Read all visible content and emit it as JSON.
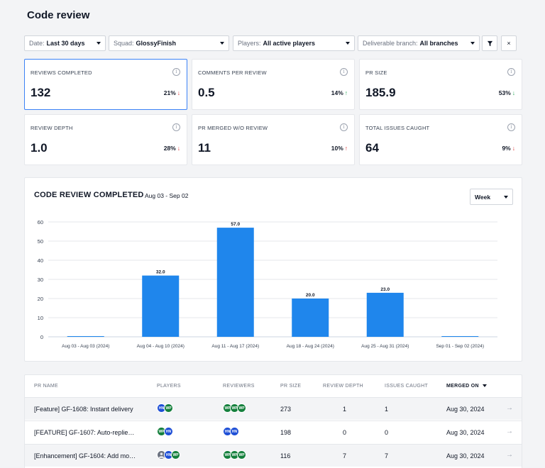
{
  "page": {
    "title": "Code review"
  },
  "filters": [
    {
      "label": "Date:",
      "value": "Last 30 days"
    },
    {
      "label": "Squad:",
      "value": "GlossyFinish"
    },
    {
      "label": "Players:",
      "value": "All active players"
    },
    {
      "label": "Deliverable branch:",
      "value": "All branches"
    }
  ],
  "toolbar": {
    "filter_icon": "funnel-icon",
    "clear_icon": "close-icon",
    "clear_glyph": "×"
  },
  "metrics": [
    {
      "label": "REVIEWS COMPLETED",
      "value": "132",
      "delta": "21%",
      "trend": "down",
      "good": false
    },
    {
      "label": "COMMENTS PER REVIEW",
      "value": "0.5",
      "delta": "14%",
      "trend": "up",
      "good": true
    },
    {
      "label": "PR SIZE",
      "value": "185.9",
      "delta": "53%",
      "trend": "down",
      "good": true
    },
    {
      "label": "REVIEW DEPTH",
      "value": "1.0",
      "delta": "28%",
      "trend": "down",
      "good": false
    },
    {
      "label": "PR MERGED W/O REVIEW",
      "value": "11",
      "delta": "10%",
      "trend": "up",
      "good": false
    },
    {
      "label": "TOTAL ISSUES CAUGHT",
      "value": "64",
      "delta": "9%",
      "trend": "down",
      "good": false
    }
  ],
  "chart": {
    "title": "CODE REVIEW COMPLETED",
    "range": "Aug 03 - Sep 02",
    "granularity": "Week"
  },
  "chart_data": {
    "type": "bar",
    "categories": [
      "Aug 03 - Aug 03 (2024)",
      "Aug 04 - Aug 10 (2024)",
      "Aug 11 - Aug 17 (2024)",
      "Aug 18 - Aug 24 (2024)",
      "Aug 25 - Aug 31 (2024)",
      "Sep 01 - Sep 02 (2024)"
    ],
    "values": [
      0,
      32,
      57,
      20,
      23,
      0
    ],
    "labels": [
      "",
      "32.0",
      "57.0",
      "20.0",
      "23.0",
      ""
    ],
    "yticks": [
      0,
      10,
      20,
      30,
      40,
      50,
      60
    ],
    "ylim": [
      0,
      60
    ],
    "grid": true,
    "color": "#1f86ec"
  },
  "table": {
    "headers": [
      "PR NAME",
      "PLAYERS",
      "REVIEWERS",
      "PR SIZE",
      "REVIEW DEPTH",
      "ISSUES CAUGHT",
      "MERGED ON"
    ],
    "rows": [
      {
        "name": "[Feature] GF-1608: Instant delivery",
        "players": [
          "HN",
          "WP"
        ],
        "reviewers": [
          "WP",
          "WP",
          "WP"
        ],
        "size": "273",
        "depth": "1",
        "issues": "1",
        "merged": "Aug 30, 2024"
      },
      {
        "name": "[FEATURE] GF-1607: Auto-replie…",
        "players": [
          "WP",
          "HN"
        ],
        "reviewers": [
          "HN",
          "HN"
        ],
        "size": "198",
        "depth": "0",
        "issues": "0",
        "merged": "Aug 30, 2024"
      },
      {
        "name": "[Enhancement] GF-1604: Add mo…",
        "players": [
          "",
          "HN",
          "WP"
        ],
        "reviewers": [
          "WP",
          "WP",
          "WP"
        ],
        "size": "116",
        "depth": "7",
        "issues": "7",
        "merged": "Aug 30, 2024"
      }
    ]
  },
  "colors": {
    "accent": "#3b82f6",
    "bar": "#1f86ec",
    "down": "#dc2626",
    "up": "#16a34a",
    "avatar_blue": "#1e4fd6",
    "avatar_green": "#15803d"
  }
}
